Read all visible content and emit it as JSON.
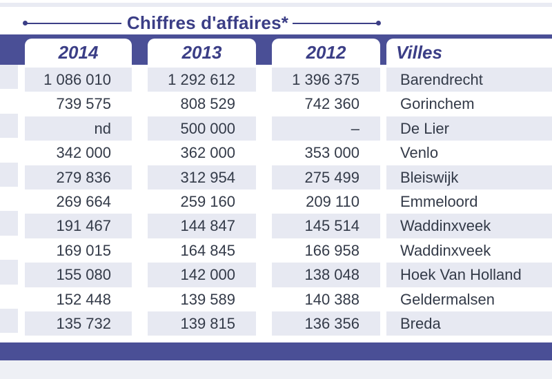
{
  "header": {
    "title": "Chiffres d'affaires*"
  },
  "columns": [
    {
      "key": "y2014",
      "label": "2014"
    },
    {
      "key": "y2013",
      "label": "2013"
    },
    {
      "key": "y2012",
      "label": "2012"
    },
    {
      "key": "ville",
      "label": "Villes"
    }
  ],
  "rows": [
    {
      "y2014": "1 086 010",
      "y2013": "1 292 612",
      "y2012": "1 396 375",
      "ville": "Barendrecht"
    },
    {
      "y2014": "739 575",
      "y2013": "808 529",
      "y2012": "742 360",
      "ville": "Gorinchem"
    },
    {
      "y2014": "nd",
      "y2013": "500 000",
      "y2012": "–",
      "ville": "De Lier"
    },
    {
      "y2014": "342 000",
      "y2013": "362 000",
      "y2012": "353 000",
      "ville": "Venlo"
    },
    {
      "y2014": "279 836",
      "y2013": "312 954",
      "y2012": "275 499",
      "ville": "Bleiswijk"
    },
    {
      "y2014": "269 664",
      "y2013": "259 160",
      "y2012": "209 110",
      "ville": "Emmeloord"
    },
    {
      "y2014": "191 467",
      "y2013": "144 847",
      "y2012": "145 514",
      "ville": "Waddinxveek"
    },
    {
      "y2014": "169 015",
      "y2013": "164 845",
      "y2012": "166 958",
      "ville": "Waddinxveek"
    },
    {
      "y2014": "155 080",
      "y2013": "142 000",
      "y2012": "138 048",
      "ville": "Hoek Van Holland"
    },
    {
      "y2014": "152 448",
      "y2013": "139 589",
      "y2012": "140 388",
      "ville": "Geldermalsen"
    },
    {
      "y2014": "135 732",
      "y2013": "139 815",
      "y2012": "136 356",
      "ville": "Breda"
    }
  ],
  "colors": {
    "accent": "#3b3e86",
    "band": "#4a4f96",
    "row_shade": "#e7e9f2"
  }
}
